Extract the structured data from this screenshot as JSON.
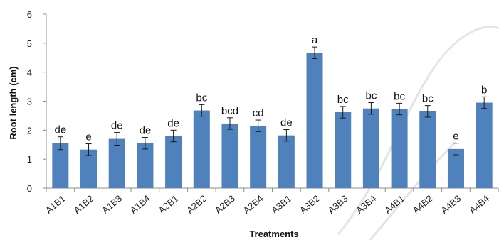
{
  "chart_data": {
    "type": "bar",
    "title": "",
    "xlabel": "Treatments",
    "ylabel": "Root length (cm)",
    "ylim": [
      0,
      6
    ],
    "yticks": [
      0,
      1,
      2,
      3,
      4,
      5,
      6
    ],
    "grid": false,
    "legend": "none",
    "bar_color": "#4f81bd",
    "categories": [
      "A1B1",
      "A1B2",
      "A1B3",
      "A1B4",
      "A2B1",
      "A2B2",
      "A2B3",
      "A2B4",
      "A3B1",
      "A3B2",
      "A3B3",
      "A3B4",
      "A4B1",
      "A4B2",
      "A4B3",
      "A4B4"
    ],
    "values": [
      1.55,
      1.33,
      1.7,
      1.55,
      1.8,
      2.68,
      2.23,
      2.15,
      1.82,
      4.67,
      2.62,
      2.75,
      2.73,
      2.65,
      1.35,
      2.95
    ],
    "errors": [
      0.22,
      0.2,
      0.22,
      0.2,
      0.2,
      0.2,
      0.2,
      0.2,
      0.2,
      0.2,
      0.2,
      0.2,
      0.2,
      0.2,
      0.2,
      0.2
    ],
    "labels": [
      "de",
      "e",
      "de",
      "de",
      "de",
      "bc",
      "bcd",
      "cd",
      "de",
      "a",
      "bc",
      "bc",
      "bc",
      "bc",
      "e",
      "b"
    ]
  }
}
